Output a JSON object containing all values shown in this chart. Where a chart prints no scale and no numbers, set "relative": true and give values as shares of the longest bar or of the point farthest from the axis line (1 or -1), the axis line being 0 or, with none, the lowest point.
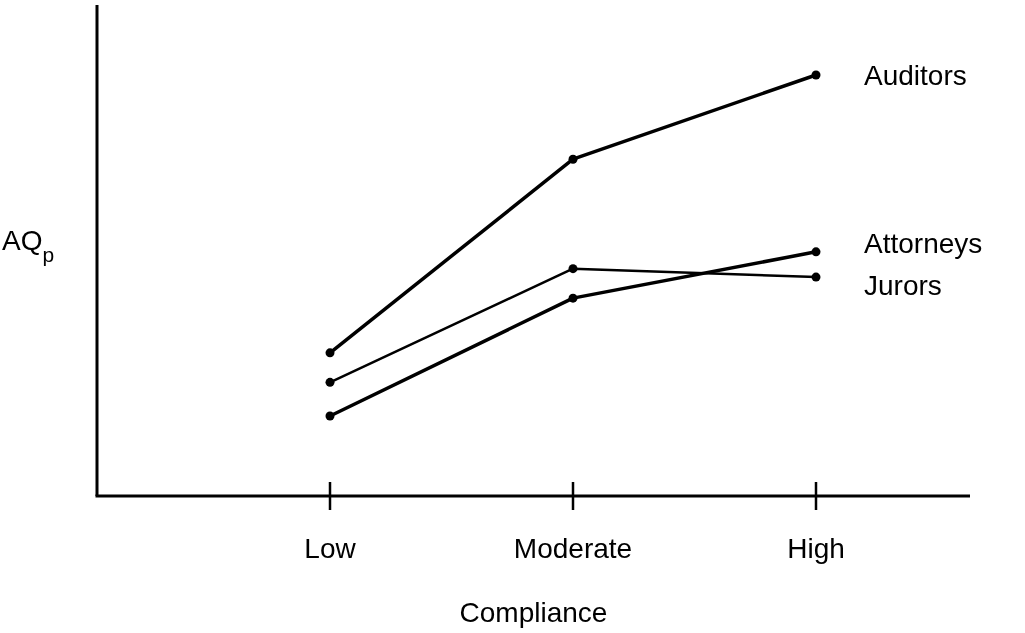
{
  "chart_data": {
    "type": "line",
    "relative": true,
    "xlabel": "Compliance",
    "ylabel": "AQ$_{p}$",
    "categories": [
      "Low",
      "Moderate",
      "High"
    ],
    "marker": "circle",
    "line_style": "solid",
    "legend": false,
    "series": [
      {
        "name": "Auditors",
        "color": "#000000",
        "values": [
          0.34,
          0.8,
          1
        ]
      },
      {
        "name": "Attorneys",
        "color": "#000000",
        "values": [
          0.19,
          0.47,
          0.58
        ]
      },
      {
        "name": "Jurors",
        "color": "#000000",
        "values": [
          0.27,
          0.54,
          0.52
        ]
      }
    ]
  }
}
